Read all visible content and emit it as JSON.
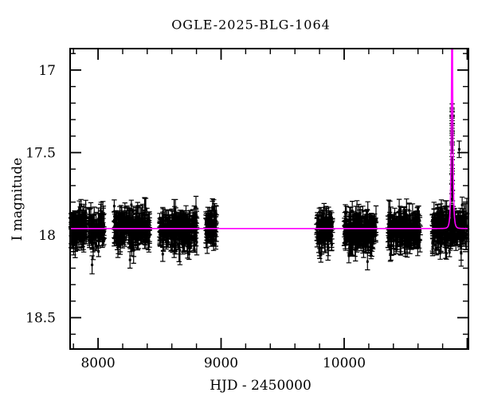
{
  "title": "OGLE-2025-BLG-1064",
  "colors": {
    "background": "#ffffff",
    "data_points": "#000000",
    "model_curve": "#ff00ff",
    "frame": "#000000"
  },
  "chart_data": {
    "type": "scatter",
    "title": "OGLE-2025-BLG-1064",
    "xlabel": "HJD - 2450000",
    "ylabel": "I magnitude",
    "xlim": [
      7773,
      11010
    ],
    "ylim": [
      18.69,
      16.87
    ],
    "y_axis_inverted": true,
    "grid": false,
    "x_ticks": {
      "major": [
        8000,
        9000,
        10000,
        11000
      ],
      "minor": [
        7800,
        8200,
        8400,
        8600,
        8800,
        9200,
        9400,
        9600,
        9800,
        10200,
        10400,
        10600,
        10800
      ],
      "labels": [
        {
          "value": 8000,
          "text": "8000"
        },
        {
          "value": 9000,
          "text": "9000"
        },
        {
          "value": 10000,
          "text": "10000"
        }
      ]
    },
    "y_ticks": {
      "major": [
        17,
        17.5,
        18,
        18.5
      ],
      "minor": [
        16.9,
        17.1,
        17.2,
        17.3,
        17.4,
        17.6,
        17.7,
        17.8,
        17.9,
        18.1,
        18.2,
        18.3,
        18.4,
        18.6
      ],
      "labels": [
        {
          "value": 17,
          "text": "17"
        },
        {
          "value": 17.5,
          "text": "17.5"
        },
        {
          "value": 18,
          "text": "18"
        },
        {
          "value": 18.5,
          "text": "18.5"
        }
      ]
    },
    "model": {
      "kind": "point-lens-microlensing",
      "baseline_mag": 17.96,
      "t0": 10877,
      "tE": 10,
      "u0": 0.004,
      "color": "#ff00ff"
    },
    "seasons": [
      {
        "start": 7780,
        "end": 8050,
        "n": 220,
        "mag_mean": 17.96,
        "mag_sigma": 0.048
      },
      {
        "start": 8130,
        "end": 8420,
        "n": 240,
        "mag_mean": 17.96,
        "mag_sigma": 0.048
      },
      {
        "start": 8500,
        "end": 8810,
        "n": 260,
        "mag_mean": 17.965,
        "mag_sigma": 0.05
      },
      {
        "start": 8875,
        "end": 8965,
        "n": 85,
        "mag_mean": 17.95,
        "mag_sigma": 0.045
      },
      {
        "start": 9775,
        "end": 9905,
        "n": 100,
        "mag_mean": 17.97,
        "mag_sigma": 0.05
      },
      {
        "start": 10000,
        "end": 10260,
        "n": 230,
        "mag_mean": 17.975,
        "mag_sigma": 0.05
      },
      {
        "start": 10355,
        "end": 10620,
        "n": 220,
        "mag_mean": 17.97,
        "mag_sigma": 0.048
      },
      {
        "start": 10715,
        "end": 11000,
        "n": 250,
        "mag_mean": 17.96,
        "mag_sigma": 0.05
      }
    ],
    "event_points": [
      {
        "x": 10875.8,
        "mag": 17.78,
        "err": 0.03
      },
      {
        "x": 10876.0,
        "mag": 17.72,
        "err": 0.028
      },
      {
        "x": 10876.2,
        "mag": 17.66,
        "err": 0.027
      },
      {
        "x": 10876.4,
        "mag": 17.6,
        "err": 0.026
      },
      {
        "x": 10876.6,
        "mag": 17.55,
        "err": 0.026
      },
      {
        "x": 10876.9,
        "mag": 17.46,
        "err": 0.025
      },
      {
        "x": 10877.0,
        "mag": 17.42,
        "err": 0.024
      },
      {
        "x": 10877.1,
        "mag": 17.39,
        "err": 0.024
      },
      {
        "x": 10877.2,
        "mag": 17.36,
        "err": 0.023
      },
      {
        "x": 10877.3,
        "mag": 17.33,
        "err": 0.023
      },
      {
        "x": 10877.4,
        "mag": 17.3,
        "err": 0.022
      },
      {
        "x": 10877.5,
        "mag": 17.27,
        "err": 0.022
      },
      {
        "x": 10877.6,
        "mag": 17.25,
        "err": 0.022
      },
      {
        "x": 10877.7,
        "mag": 17.23,
        "err": 0.025
      },
      {
        "x": 10877.9,
        "mag": 17.26,
        "err": 0.023
      },
      {
        "x": 10878.1,
        "mag": 17.3,
        "err": 0.024
      },
      {
        "x": 10878.3,
        "mag": 17.35,
        "err": 0.024
      },
      {
        "x": 10878.5,
        "mag": 17.41,
        "err": 0.025
      },
      {
        "x": 10878.8,
        "mag": 17.48,
        "err": 0.026
      },
      {
        "x": 10879.1,
        "mag": 17.57,
        "err": 0.027
      },
      {
        "x": 10879.5,
        "mag": 17.64,
        "err": 0.028
      },
      {
        "x": 10880.0,
        "mag": 17.7,
        "err": 0.03
      },
      {
        "x": 10880.6,
        "mag": 17.76,
        "err": 0.032
      }
    ],
    "extra_points": [
      {
        "x": 7952,
        "mag": 18.18,
        "err": 0.055
      },
      {
        "x": 8260,
        "mag": 18.15,
        "err": 0.05
      },
      {
        "x": 8930,
        "mag": 17.83,
        "err": 0.05
      },
      {
        "x": 10190,
        "mag": 18.16,
        "err": 0.05
      },
      {
        "x": 10935,
        "mag": 17.48,
        "err": 0.05
      }
    ]
  }
}
